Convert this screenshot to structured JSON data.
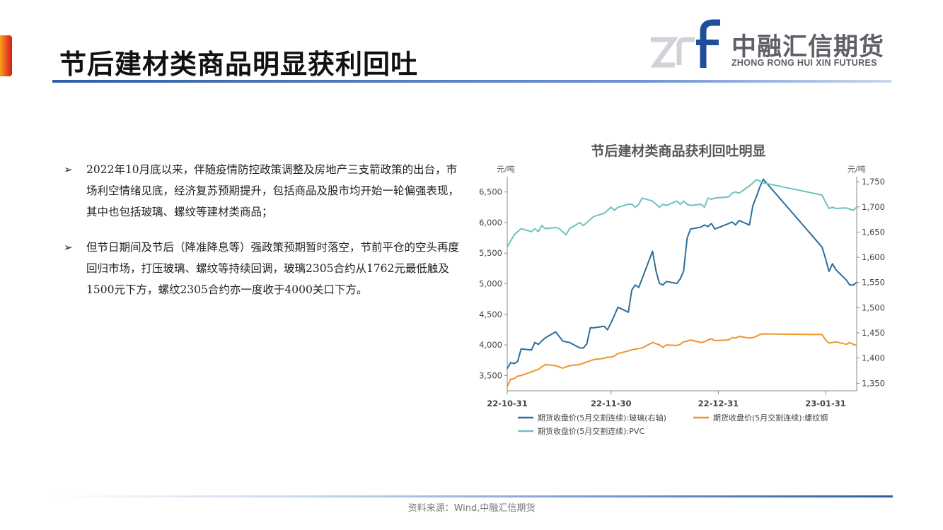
{
  "slide": {
    "title": "节后建材类商品明显获利回吐",
    "source": "资料来源：Wind,中融汇信期货"
  },
  "logo": {
    "mark_text": "zrf",
    "name_cn": "中融汇信期货",
    "name_en": "ZHONG RONG HUI XIN FUTURES"
  },
  "bullets": [
    {
      "marker": "➢",
      "text": "2022年10月底以来，伴随疫情防控政策调整及房地产三支箭政策的出台，市场利空情绪见底，经济复苏预期提升，包括商品及股市均开始一轮偏强表现，其中也包括玻璃、螺纹等建材类商品；"
    },
    {
      "marker": "➢",
      "text": "但节日期间及节后（降准降息等）强政策预期暂时落空，节前平仓的空头再度回归市场，打压玻璃、螺纹等持续回调，玻璃2305合约从1762元最低触及1500元下方，螺纹2305合约亦一度收于4000关口下方。"
    }
  ],
  "chart_data": {
    "type": "line",
    "title": "节后建材类商品获利回吐明显",
    "y_left_unit": "元/吨",
    "y_right_unit": "元/吨",
    "y_left_range": [
      3250,
      6750
    ],
    "y_left_ticks": [
      3500,
      4000,
      4500,
      5000,
      5500,
      6000,
      6500
    ],
    "y_left_tick_labels": [
      "3,500",
      "4,000",
      "4,500",
      "5,000",
      "5,500",
      "6,000",
      "6,500"
    ],
    "y_right_range": [
      1335,
      1760
    ],
    "y_right_ticks": [
      1350,
      1400,
      1450,
      1500,
      1550,
      1600,
      1650,
      1700,
      1750
    ],
    "y_right_tick_labels": [
      "1,350",
      "1,400",
      "1,450",
      "1,500",
      "1,550",
      "1,600",
      "1,650",
      "1,700",
      "1,750"
    ],
    "x_tick_labels": [
      "22-10-31",
      "22-11-30",
      "22-12-31",
      "23-01-31"
    ],
    "x_tick_dates": [
      "2022-10-31",
      "2022-11-30",
      "2022-12-31",
      "2023-01-31"
    ],
    "x_range": [
      "2022-10-31",
      "2023-02-09"
    ],
    "legend_position": "bottom",
    "series": [
      {
        "name": "期货收盘价(5月交割连续):玻璃(右轴)",
        "axis": "right",
        "color": "#2e6e99",
        "points": [
          [
            "2022-10-31",
            1379
          ],
          [
            "2022-11-01",
            1391
          ],
          [
            "2022-11-02",
            1389
          ],
          [
            "2022-11-03",
            1393
          ],
          [
            "2022-11-04",
            1418
          ],
          [
            "2022-11-07",
            1416
          ],
          [
            "2022-11-08",
            1431
          ],
          [
            "2022-11-09",
            1427
          ],
          [
            "2022-11-10",
            1434
          ],
          [
            "2022-11-11",
            1440
          ],
          [
            "2022-11-14",
            1452
          ],
          [
            "2022-11-15",
            1443
          ],
          [
            "2022-11-16",
            1434
          ],
          [
            "2022-11-17",
            1432
          ],
          [
            "2022-11-18",
            1431
          ],
          [
            "2022-11-21",
            1420
          ],
          [
            "2022-11-22",
            1420
          ],
          [
            "2022-11-23",
            1428
          ],
          [
            "2022-11-24",
            1460
          ],
          [
            "2022-11-25",
            1460
          ],
          [
            "2022-11-28",
            1463
          ],
          [
            "2022-11-29",
            1456
          ],
          [
            "2022-11-30",
            1470
          ],
          [
            "2022-12-01",
            1485
          ],
          [
            "2022-12-02",
            1501
          ],
          [
            "2022-12-05",
            1491
          ],
          [
            "2022-12-06",
            1535
          ],
          [
            "2022-12-07",
            1545
          ],
          [
            "2022-12-08",
            1540
          ],
          [
            "2022-12-09",
            1558
          ],
          [
            "2022-12-12",
            1612
          ],
          [
            "2022-12-13",
            1573
          ],
          [
            "2022-12-14",
            1548
          ],
          [
            "2022-12-15",
            1545
          ],
          [
            "2022-12-16",
            1552
          ],
          [
            "2022-12-19",
            1548
          ],
          [
            "2022-12-20",
            1557
          ],
          [
            "2022-12-21",
            1573
          ],
          [
            "2022-12-22",
            1638
          ],
          [
            "2022-12-23",
            1656
          ],
          [
            "2022-12-26",
            1660
          ],
          [
            "2022-12-27",
            1664
          ],
          [
            "2022-12-28",
            1661
          ],
          [
            "2022-12-29",
            1667
          ],
          [
            "2022-12-30",
            1656
          ],
          [
            "2023-01-03",
            1667
          ],
          [
            "2023-01-04",
            1670
          ],
          [
            "2023-01-05",
            1664
          ],
          [
            "2023-01-06",
            1673
          ],
          [
            "2023-01-09",
            1664
          ],
          [
            "2023-01-10",
            1703
          ],
          [
            "2023-01-11",
            1720
          ],
          [
            "2023-01-12",
            1739
          ],
          [
            "2023-01-13",
            1755
          ],
          [
            "2023-01-30",
            1620
          ],
          [
            "2023-01-31",
            1597
          ],
          [
            "2023-02-01",
            1572
          ],
          [
            "2023-02-02",
            1587
          ],
          [
            "2023-02-03",
            1575
          ],
          [
            "2023-02-06",
            1555
          ],
          [
            "2023-02-07",
            1545
          ],
          [
            "2023-02-08",
            1545
          ],
          [
            "2023-02-09",
            1550
          ]
        ]
      },
      {
        "name": "期货收盘价(5月交割连续):螺纹钢",
        "axis": "left",
        "color": "#f0932b",
        "points": [
          [
            "2022-10-31",
            3320
          ],
          [
            "2022-11-01",
            3440
          ],
          [
            "2022-11-02",
            3450
          ],
          [
            "2022-11-03",
            3490
          ],
          [
            "2022-11-04",
            3500
          ],
          [
            "2022-11-07",
            3560
          ],
          [
            "2022-11-08",
            3580
          ],
          [
            "2022-11-09",
            3600
          ],
          [
            "2022-11-10",
            3640
          ],
          [
            "2022-11-11",
            3680
          ],
          [
            "2022-11-14",
            3660
          ],
          [
            "2022-11-15",
            3640
          ],
          [
            "2022-11-16",
            3620
          ],
          [
            "2022-11-17",
            3640
          ],
          [
            "2022-11-18",
            3660
          ],
          [
            "2022-11-21",
            3680
          ],
          [
            "2022-11-22",
            3700
          ],
          [
            "2022-11-23",
            3720
          ],
          [
            "2022-11-24",
            3740
          ],
          [
            "2022-11-25",
            3760
          ],
          [
            "2022-11-28",
            3780
          ],
          [
            "2022-11-29",
            3800
          ],
          [
            "2022-11-30",
            3800
          ],
          [
            "2022-12-01",
            3820
          ],
          [
            "2022-12-02",
            3860
          ],
          [
            "2022-12-05",
            3900
          ],
          [
            "2022-12-06",
            3920
          ],
          [
            "2022-12-07",
            3930
          ],
          [
            "2022-12-08",
            3940
          ],
          [
            "2022-12-09",
            3950
          ],
          [
            "2022-12-12",
            4040
          ],
          [
            "2022-12-13",
            4020
          ],
          [
            "2022-12-14",
            4000
          ],
          [
            "2022-12-15",
            3960
          ],
          [
            "2022-12-16",
            4000
          ],
          [
            "2022-12-19",
            3990
          ],
          [
            "2022-12-20",
            4010
          ],
          [
            "2022-12-21",
            4050
          ],
          [
            "2022-12-22",
            4060
          ],
          [
            "2022-12-23",
            4080
          ],
          [
            "2022-12-26",
            4040
          ],
          [
            "2022-12-27",
            4050
          ],
          [
            "2022-12-28",
            4080
          ],
          [
            "2022-12-29",
            4100
          ],
          [
            "2022-12-30",
            4070
          ],
          [
            "2023-01-03",
            4080
          ],
          [
            "2023-01-04",
            4120
          ],
          [
            "2023-01-05",
            4110
          ],
          [
            "2023-01-06",
            4140
          ],
          [
            "2023-01-09",
            4110
          ],
          [
            "2023-01-10",
            4120
          ],
          [
            "2023-01-11",
            4140
          ],
          [
            "2023-01-12",
            4170
          ],
          [
            "2023-01-13",
            4180
          ],
          [
            "2023-01-30",
            4170
          ],
          [
            "2023-01-31",
            4080
          ],
          [
            "2023-02-01",
            4030
          ],
          [
            "2023-02-02",
            4040
          ],
          [
            "2023-02-03",
            4050
          ],
          [
            "2023-02-06",
            4010
          ],
          [
            "2023-02-07",
            4040
          ],
          [
            "2023-02-08",
            4010
          ],
          [
            "2023-02-09",
            3990
          ]
        ]
      },
      {
        "name": "期货收盘价(5月交割连续):PVC",
        "axis": "left",
        "color": "#6cc2c0",
        "points": [
          [
            "2022-10-31",
            5600
          ],
          [
            "2022-11-01",
            5700
          ],
          [
            "2022-11-02",
            5800
          ],
          [
            "2022-11-03",
            5850
          ],
          [
            "2022-11-04",
            5900
          ],
          [
            "2022-11-07",
            5850
          ],
          [
            "2022-11-08",
            5900
          ],
          [
            "2022-11-09",
            5850
          ],
          [
            "2022-11-10",
            5950
          ],
          [
            "2022-11-11",
            5900
          ],
          [
            "2022-11-14",
            5920
          ],
          [
            "2022-11-15",
            5900
          ],
          [
            "2022-11-16",
            5850
          ],
          [
            "2022-11-17",
            5800
          ],
          [
            "2022-11-18",
            5900
          ],
          [
            "2022-11-21",
            6000
          ],
          [
            "2022-11-22",
            5950
          ],
          [
            "2022-11-23",
            6000
          ],
          [
            "2022-11-24",
            6050
          ],
          [
            "2022-11-25",
            6100
          ],
          [
            "2022-11-28",
            6150
          ],
          [
            "2022-11-29",
            6200
          ],
          [
            "2022-11-30",
            6250
          ],
          [
            "2022-12-01",
            6200
          ],
          [
            "2022-12-02",
            6250
          ],
          [
            "2022-12-05",
            6300
          ],
          [
            "2022-12-06",
            6300
          ],
          [
            "2022-12-07",
            6250
          ],
          [
            "2022-12-08",
            6300
          ],
          [
            "2022-12-09",
            6400
          ],
          [
            "2022-12-12",
            6350
          ],
          [
            "2022-12-13",
            6300
          ],
          [
            "2022-12-14",
            6250
          ],
          [
            "2022-12-15",
            6300
          ],
          [
            "2022-12-16",
            6280
          ],
          [
            "2022-12-19",
            6350
          ],
          [
            "2022-12-20",
            6300
          ],
          [
            "2022-12-21",
            6350
          ],
          [
            "2022-12-22",
            6300
          ],
          [
            "2022-12-23",
            6280
          ],
          [
            "2022-12-26",
            6300
          ],
          [
            "2022-12-27",
            6250
          ],
          [
            "2022-12-28",
            6400
          ],
          [
            "2022-12-29",
            6380
          ],
          [
            "2022-12-30",
            6400
          ],
          [
            "2023-01-03",
            6420
          ],
          [
            "2023-01-04",
            6480
          ],
          [
            "2023-01-05",
            6500
          ],
          [
            "2023-01-06",
            6480
          ],
          [
            "2023-01-09",
            6600
          ],
          [
            "2023-01-10",
            6650
          ],
          [
            "2023-01-11",
            6700
          ],
          [
            "2023-01-12",
            6680
          ],
          [
            "2023-01-13",
            6650
          ],
          [
            "2023-01-30",
            6450
          ],
          [
            "2023-01-31",
            6330
          ],
          [
            "2023-02-01",
            6230
          ],
          [
            "2023-02-02",
            6250
          ],
          [
            "2023-02-03",
            6230
          ],
          [
            "2023-02-06",
            6240
          ],
          [
            "2023-02-07",
            6220
          ],
          [
            "2023-02-08",
            6200
          ],
          [
            "2023-02-09",
            6250
          ]
        ]
      }
    ]
  }
}
